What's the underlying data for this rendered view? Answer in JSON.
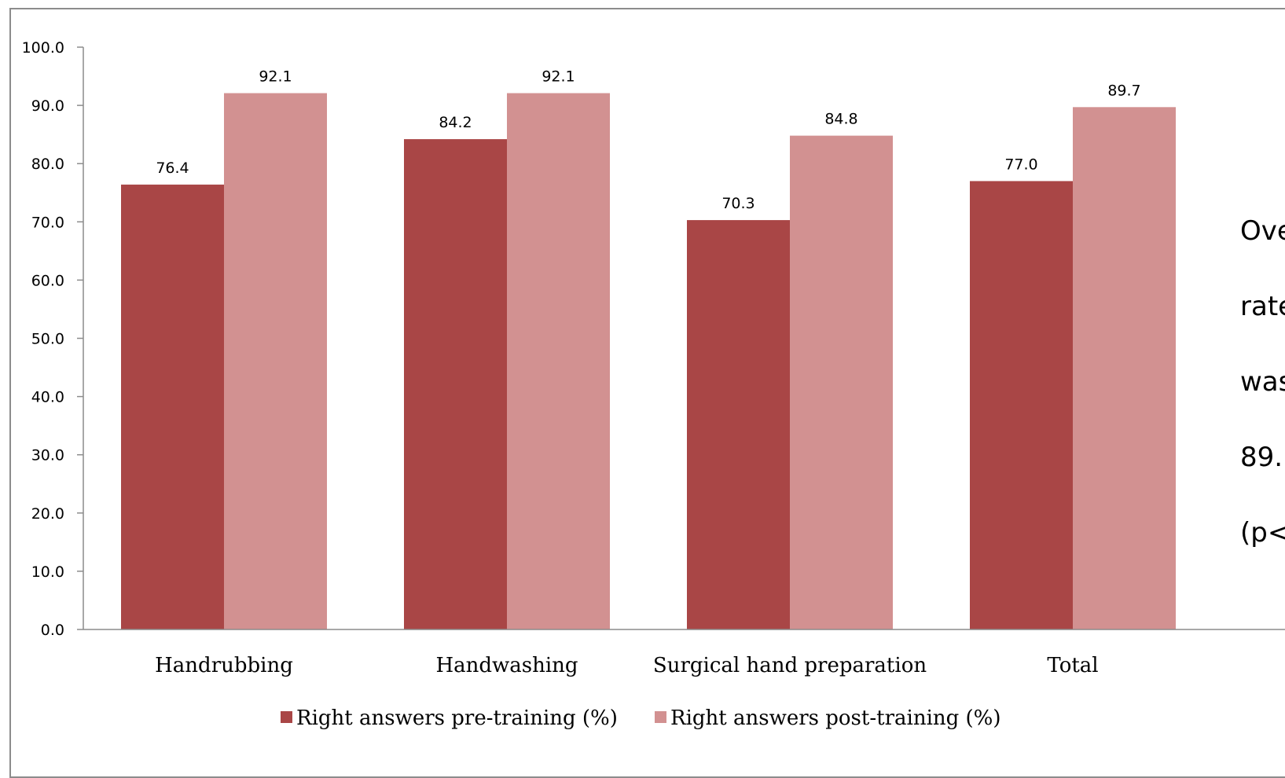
{
  "chart_data": {
    "type": "bar",
    "title": "",
    "categories": [
      "Handrubbing",
      "Handwashing",
      "Surgical hand preparation",
      "Total"
    ],
    "series": [
      {
        "name": "Right answers pre-training (%)",
        "values": [
          76.4,
          84.2,
          70.3,
          77.0
        ],
        "color": "#a94646"
      },
      {
        "name": "Right answers post-training (%)",
        "values": [
          92.1,
          92.1,
          84.8,
          89.7
        ],
        "color": "#d29191"
      }
    ],
    "ylim": [
      0,
      100
    ],
    "yticks": [
      "0.0",
      "10.0",
      "20.0",
      "30.0",
      "40.0",
      "50.0",
      "60.0",
      "70.0",
      "80.0",
      "90.0",
      "100.0"
    ],
    "grid": false,
    "legend": "bottom"
  },
  "side_note": {
    "lines": [
      "Ove",
      "rate",
      "was",
      "89.",
      "(p<"
    ]
  }
}
